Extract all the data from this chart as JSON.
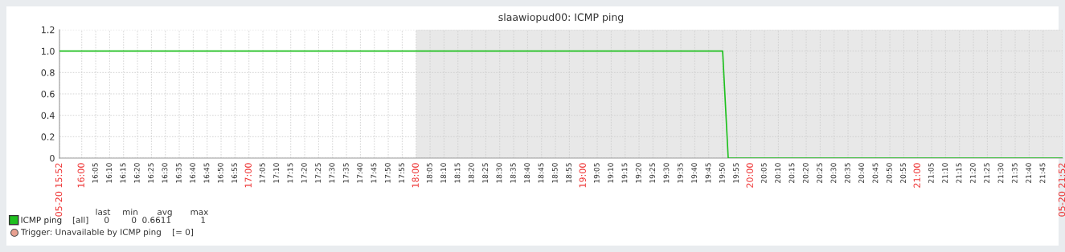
{
  "chart_data": {
    "type": "line",
    "title": "slaawiopud00: ICMP ping",
    "series": [
      {
        "name": "ICMP ping",
        "color": "#1ec01e",
        "x": [
          15.8667,
          19.8333,
          19.8667,
          21.8667
        ],
        "values": [
          1,
          1,
          0,
          0
        ]
      }
    ],
    "xlim": [
      15.8667,
      21.8667
    ],
    "xticks": [
      {
        "value": 15.8667,
        "label": "05-20 15:52"
      },
      {
        "value": 16,
        "label": "16:00"
      },
      {
        "value": 16.0833,
        "label": "16:05"
      },
      {
        "value": 16.1667,
        "label": "16:10"
      },
      {
        "value": 16.25,
        "label": "16:15"
      },
      {
        "value": 16.3333,
        "label": "16:20"
      },
      {
        "value": 16.4167,
        "label": "16:25"
      },
      {
        "value": 16.5,
        "label": "16:30"
      },
      {
        "value": 16.5833,
        "label": "16:35"
      },
      {
        "value": 16.6667,
        "label": "16:40"
      },
      {
        "value": 16.75,
        "label": "16:45"
      },
      {
        "value": 16.8333,
        "label": "16:50"
      },
      {
        "value": 16.9167,
        "label": "16:55"
      },
      {
        "value": 17,
        "label": "17:00"
      },
      {
        "value": 17.0833,
        "label": "17:05"
      },
      {
        "value": 17.1667,
        "label": "17:10"
      },
      {
        "value": 17.25,
        "label": "17:15"
      },
      {
        "value": 17.3333,
        "label": "17:20"
      },
      {
        "value": 17.4167,
        "label": "17:25"
      },
      {
        "value": 17.5,
        "label": "17:30"
      },
      {
        "value": 17.5833,
        "label": "17:35"
      },
      {
        "value": 17.6667,
        "label": "17:40"
      },
      {
        "value": 17.75,
        "label": "17:45"
      },
      {
        "value": 17.8333,
        "label": "17:50"
      },
      {
        "value": 17.9167,
        "label": "17:55"
      },
      {
        "value": 18,
        "label": "18:00"
      },
      {
        "value": 18.0833,
        "label": "18:05"
      },
      {
        "value": 18.1667,
        "label": "18:10"
      },
      {
        "value": 18.25,
        "label": "18:15"
      },
      {
        "value": 18.3333,
        "label": "18:20"
      },
      {
        "value": 18.4167,
        "label": "18:25"
      },
      {
        "value": 18.5,
        "label": "18:30"
      },
      {
        "value": 18.5833,
        "label": "18:35"
      },
      {
        "value": 18.6667,
        "label": "18:40"
      },
      {
        "value": 18.75,
        "label": "18:45"
      },
      {
        "value": 18.8333,
        "label": "18:50"
      },
      {
        "value": 18.9167,
        "label": "18:55"
      },
      {
        "value": 19,
        "label": "19:00"
      },
      {
        "value": 19.0833,
        "label": "19:05"
      },
      {
        "value": 19.1667,
        "label": "19:10"
      },
      {
        "value": 19.25,
        "label": "19:15"
      },
      {
        "value": 19.3333,
        "label": "19:20"
      },
      {
        "value": 19.4167,
        "label": "19:25"
      },
      {
        "value": 19.5,
        "label": "19:30"
      },
      {
        "value": 19.5833,
        "label": "19:35"
      },
      {
        "value": 19.6667,
        "label": "19:40"
      },
      {
        "value": 19.75,
        "label": "19:45"
      },
      {
        "value": 19.8333,
        "label": "19:50"
      },
      {
        "value": 19.9167,
        "label": "19:55"
      },
      {
        "value": 20,
        "label": "20:00"
      },
      {
        "value": 20.0833,
        "label": "20:05"
      },
      {
        "value": 20.1667,
        "label": "20:10"
      },
      {
        "value": 20.25,
        "label": "20:15"
      },
      {
        "value": 20.3333,
        "label": "20:20"
      },
      {
        "value": 20.4167,
        "label": "20:25"
      },
      {
        "value": 20.5,
        "label": "20:30"
      },
      {
        "value": 20.5833,
        "label": "20:35"
      },
      {
        "value": 20.6667,
        "label": "20:40"
      },
      {
        "value": 20.75,
        "label": "20:45"
      },
      {
        "value": 20.8333,
        "label": "20:50"
      },
      {
        "value": 20.9167,
        "label": "20:55"
      },
      {
        "value": 21,
        "label": "21:00"
      },
      {
        "value": 21.0833,
        "label": "21:05"
      },
      {
        "value": 21.1667,
        "label": "21:10"
      },
      {
        "value": 21.25,
        "label": "21:15"
      },
      {
        "value": 21.3333,
        "label": "21:20"
      },
      {
        "value": 21.4167,
        "label": "21:25"
      },
      {
        "value": 21.5,
        "label": "21:30"
      },
      {
        "value": 21.5833,
        "label": "21:35"
      },
      {
        "value": 21.6667,
        "label": "21:40"
      },
      {
        "value": 21.75,
        "label": "21:45"
      },
      {
        "value": 21.8667,
        "label": "05-20 21:52"
      }
    ],
    "ylim": [
      0,
      1.2
    ],
    "yticks": [
      0,
      0.2,
      0.4,
      0.6,
      0.8,
      {
        "value": 1,
        "label": "1.0"
      },
      1.2
    ],
    "bands": [
      {
        "axis": "x",
        "from": 18,
        "to": 21.8667,
        "color": "#e8e8e8"
      }
    ],
    "annotations": [
      "last",
      "min",
      "avg",
      "max",
      "[all]",
      "0",
      "0",
      "0.6611",
      "1",
      "Trigger: Unavailable by ICMP ping    [= 0]"
    ],
    "grid": true,
    "legend": "bottom left",
    "marker": "none",
    "line_style": "solid"
  }
}
